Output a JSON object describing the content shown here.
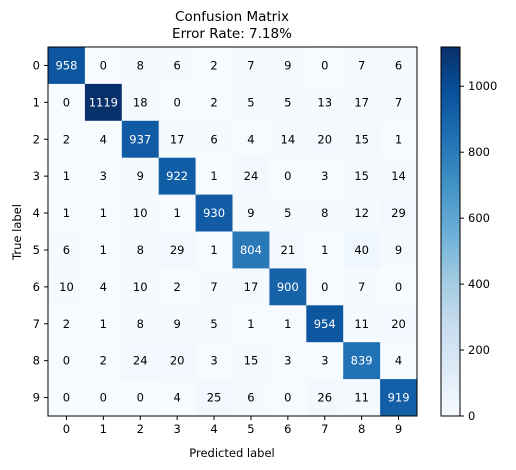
{
  "chart_data": {
    "type": "heatmap",
    "title": "Confusion Matrix",
    "subtitle": "Error Rate: 7.18%",
    "xlabel": "Predicted label",
    "ylabel": "True label",
    "x_categories": [
      "0",
      "1",
      "2",
      "3",
      "4",
      "5",
      "6",
      "7",
      "8",
      "9"
    ],
    "y_categories": [
      "0",
      "1",
      "2",
      "3",
      "4",
      "5",
      "6",
      "7",
      "8",
      "9"
    ],
    "values": [
      [
        958,
        0,
        8,
        6,
        2,
        7,
        9,
        0,
        7,
        6
      ],
      [
        0,
        1119,
        18,
        0,
        2,
        5,
        5,
        13,
        17,
        7
      ],
      [
        2,
        4,
        937,
        17,
        6,
        4,
        14,
        20,
        15,
        1
      ],
      [
        1,
        3,
        9,
        922,
        1,
        24,
        0,
        3,
        15,
        14
      ],
      [
        1,
        1,
        10,
        1,
        930,
        9,
        5,
        8,
        12,
        29
      ],
      [
        6,
        1,
        8,
        29,
        1,
        804,
        21,
        1,
        40,
        9
      ],
      [
        10,
        4,
        10,
        2,
        7,
        17,
        900,
        0,
        7,
        0
      ],
      [
        2,
        1,
        8,
        9,
        5,
        1,
        1,
        954,
        11,
        20
      ],
      [
        0,
        2,
        24,
        20,
        3,
        15,
        3,
        3,
        839,
        4
      ],
      [
        0,
        0,
        0,
        4,
        25,
        6,
        0,
        26,
        11,
        919
      ]
    ],
    "colormap": "Blues",
    "color_range": [
      0,
      1119
    ],
    "colorbar_ticks": [
      0,
      200,
      400,
      600,
      800,
      1000
    ],
    "colors": {
      "low": "#f7fbff",
      "high": "#08306b"
    },
    "grid": false
  }
}
